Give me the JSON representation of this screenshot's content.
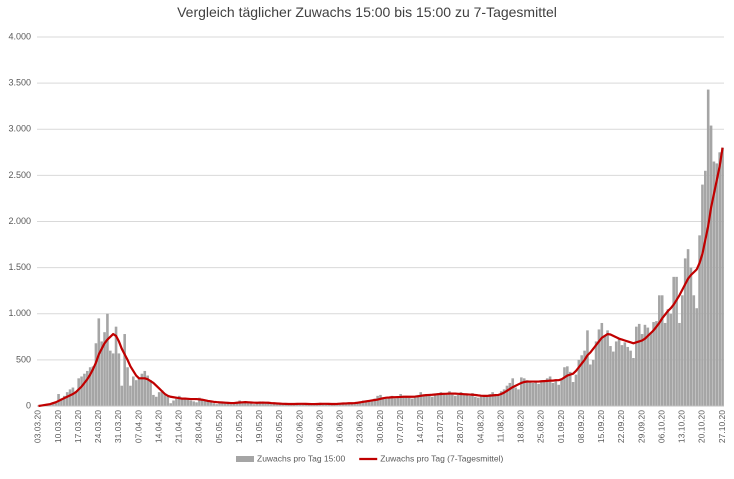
{
  "chart_data": {
    "type": "bar",
    "title": "Vergleich täglicher Zuwachs 15:00 bis 15:00 zu 7-Tagesmittel",
    "categories": [
      "03.03.20",
      null,
      null,
      null,
      null,
      null,
      null,
      "10.03.20",
      null,
      null,
      null,
      null,
      null,
      null,
      "17.03.20",
      null,
      null,
      null,
      null,
      null,
      null,
      "24.03.20",
      null,
      null,
      null,
      null,
      null,
      null,
      "31.03.20",
      null,
      null,
      null,
      null,
      null,
      null,
      "07.04.20",
      null,
      null,
      null,
      null,
      null,
      null,
      "14.04.20",
      null,
      null,
      null,
      null,
      null,
      null,
      "21.04.20",
      null,
      null,
      null,
      null,
      null,
      null,
      "28.04.20",
      null,
      null,
      null,
      null,
      null,
      null,
      "05.05.20",
      null,
      null,
      null,
      null,
      null,
      null,
      "12.05.20",
      null,
      null,
      null,
      null,
      null,
      null,
      "19.05.20",
      null,
      null,
      null,
      null,
      null,
      null,
      "26.05.20",
      null,
      null,
      null,
      null,
      null,
      null,
      "02.06.20",
      null,
      null,
      null,
      null,
      null,
      null,
      "09.06.20",
      null,
      null,
      null,
      null,
      null,
      null,
      "16.06.20",
      null,
      null,
      null,
      null,
      null,
      null,
      "23.06.20",
      null,
      null,
      null,
      null,
      null,
      null,
      "30.06.20",
      null,
      null,
      null,
      null,
      null,
      null,
      "07.07.20",
      null,
      null,
      null,
      null,
      null,
      null,
      "14.07.20",
      null,
      null,
      null,
      null,
      null,
      null,
      "21.07.20",
      null,
      null,
      null,
      null,
      null,
      null,
      "28.07.20",
      null,
      null,
      null,
      null,
      null,
      null,
      "04.08.20",
      null,
      null,
      null,
      null,
      null,
      null,
      "11.08.20",
      null,
      null,
      null,
      null,
      null,
      null,
      "18.08.20",
      null,
      null,
      null,
      null,
      null,
      null,
      "25.08.20",
      null,
      null,
      null,
      null,
      null,
      null,
      "01.09.20",
      null,
      null,
      null,
      null,
      null,
      null,
      "08.09.20",
      null,
      null,
      null,
      null,
      null,
      null,
      "15.09.20",
      null,
      null,
      null,
      null,
      null,
      null,
      "22.09.20",
      null,
      null,
      null,
      null,
      null,
      null,
      "29.09.20",
      null,
      null,
      null,
      null,
      null,
      null,
      "06.10.20",
      null,
      null,
      null,
      null,
      null,
      null,
      "13.10.20",
      null,
      null,
      null,
      null,
      null,
      null,
      "20.10.20",
      null,
      null,
      null,
      null,
      null,
      null,
      "27.10.20"
    ],
    "series": [
      {
        "name": "Zuwachs pro Tag 15:00",
        "type": "bar",
        "color": "#a5a5a5",
        "values": [
          5,
          10,
          15,
          20,
          30,
          40,
          50,
          130,
          80,
          110,
          150,
          180,
          200,
          160,
          300,
          320,
          350,
          380,
          420,
          430,
          680,
          950,
          700,
          800,
          1000,
          600,
          570,
          860,
          570,
          220,
          780,
          420,
          220,
          320,
          280,
          300,
          350,
          380,
          330,
          280,
          120,
          100,
          150,
          170,
          130,
          100,
          30,
          60,
          80,
          110,
          90,
          80,
          70,
          60,
          50,
          40,
          90,
          70,
          60,
          50,
          40,
          30,
          20,
          40,
          30,
          35,
          30,
          20,
          25,
          30,
          60,
          40,
          50,
          40,
          30,
          20,
          30,
          50,
          40,
          40,
          30,
          20,
          25,
          30,
          30,
          25,
          20,
          20,
          15,
          20,
          25,
          30,
          25,
          20,
          25,
          20,
          15,
          20,
          35,
          30,
          25,
          20,
          15,
          20,
          25,
          30,
          25,
          30,
          35,
          30,
          25,
          40,
          50,
          60,
          55,
          60,
          70,
          80,
          110,
          120,
          90,
          80,
          100,
          110,
          80,
          90,
          130,
          100,
          110,
          90,
          80,
          100,
          120,
          150,
          120,
          130,
          110,
          100,
          120,
          140,
          150,
          130,
          120,
          160,
          140,
          110,
          120,
          150,
          130,
          120,
          110,
          140,
          100,
          90,
          110,
          120,
          100,
          130,
          150,
          110,
          120,
          160,
          180,
          220,
          250,
          300,
          200,
          180,
          310,
          300,
          280,
          260,
          250,
          270,
          240,
          270,
          280,
          300,
          320,
          250,
          290,
          230,
          300,
          420,
          430,
          370,
          260,
          340,
          500,
          550,
          600,
          820,
          450,
          500,
          700,
          830,
          900,
          760,
          820,
          650,
          590,
          700,
          730,
          660,
          690,
          640,
          600,
          520,
          860,
          890,
          780,
          880,
          850,
          790,
          910,
          920,
          1200,
          1200,
          900,
          1050,
          1000,
          1400,
          1400,
          900,
          1200,
          1600,
          1700,
          1500,
          1200,
          1060,
          1850,
          2400,
          2550,
          3430,
          3040,
          2650,
          2630,
          2750,
          2800
        ]
      },
      {
        "name": "Zuwachs pro Tag (7-Tagesmittel)",
        "type": "line",
        "color": "#c00000",
        "values": [
          0,
          5,
          10,
          15,
          20,
          30,
          40,
          55,
          70,
          85,
          100,
          115,
          130,
          150,
          180,
          210,
          250,
          290,
          340,
          400,
          470,
          560,
          620,
          680,
          720,
          750,
          780,
          760,
          700,
          620,
          560,
          500,
          430,
          380,
          330,
          300,
          300,
          300,
          290,
          270,
          250,
          220,
          190,
          160,
          130,
          110,
          100,
          95,
          90,
          85,
          80,
          80,
          78,
          75,
          75,
          75,
          72,
          68,
          62,
          55,
          50,
          45,
          42,
          40,
          38,
          36,
          34,
          32,
          32,
          35,
          38,
          40,
          42,
          40,
          38,
          36,
          35,
          36,
          37,
          36,
          35,
          32,
          30,
          28,
          26,
          24,
          23,
          22,
          22,
          22,
          23,
          24,
          24,
          23,
          22,
          21,
          21,
          22,
          23,
          24,
          24,
          23,
          22,
          22,
          23,
          25,
          27,
          28,
          30,
          30,
          32,
          35,
          40,
          45,
          50,
          55,
          60,
          65,
          70,
          78,
          85,
          90,
          92,
          95,
          95,
          97,
          98,
          100,
          100,
          100,
          100,
          102,
          105,
          110,
          115,
          118,
          120,
          122,
          125,
          128,
          130,
          132,
          133,
          135,
          135,
          134,
          132,
          130,
          128,
          126,
          124,
          122,
          120,
          115,
          112,
          110,
          110,
          112,
          115,
          118,
          120,
          130,
          145,
          165,
          185,
          205,
          220,
          235,
          250,
          260,
          265,
          265,
          265,
          265,
          265,
          268,
          270,
          272,
          275,
          275,
          280,
          280,
          290,
          310,
          330,
          340,
          350,
          380,
          420,
          460,
          500,
          550,
          580,
          620,
          660,
          700,
          740,
          760,
          780,
          775,
          760,
          745,
          730,
          720,
          710,
          700,
          690,
          680,
          690,
          700,
          710,
          730,
          760,
          790,
          820,
          860,
          900,
          950,
          990,
          1030,
          1060,
          1100,
          1150,
          1200,
          1260,
          1320,
          1380,
          1420,
          1450,
          1480,
          1550,
          1650,
          1800,
          1950,
          2150,
          2300,
          2450,
          2600,
          2800
        ]
      }
    ],
    "ylim": [
      0,
      4000
    ],
    "yticks": [
      0,
      500,
      {
        "value": 1000,
        "label": "1.000"
      },
      {
        "value": 1500,
        "label": "1.500"
      },
      {
        "value": 2000,
        "label": "2.000"
      },
      {
        "value": 2500,
        "label": "2.500"
      },
      {
        "value": 3000,
        "label": "3.000"
      },
      {
        "value": 3500,
        "label": "3.500"
      },
      {
        "value": 4000,
        "label": "4.000"
      }
    ],
    "grid": true,
    "legend": "bottom"
  }
}
